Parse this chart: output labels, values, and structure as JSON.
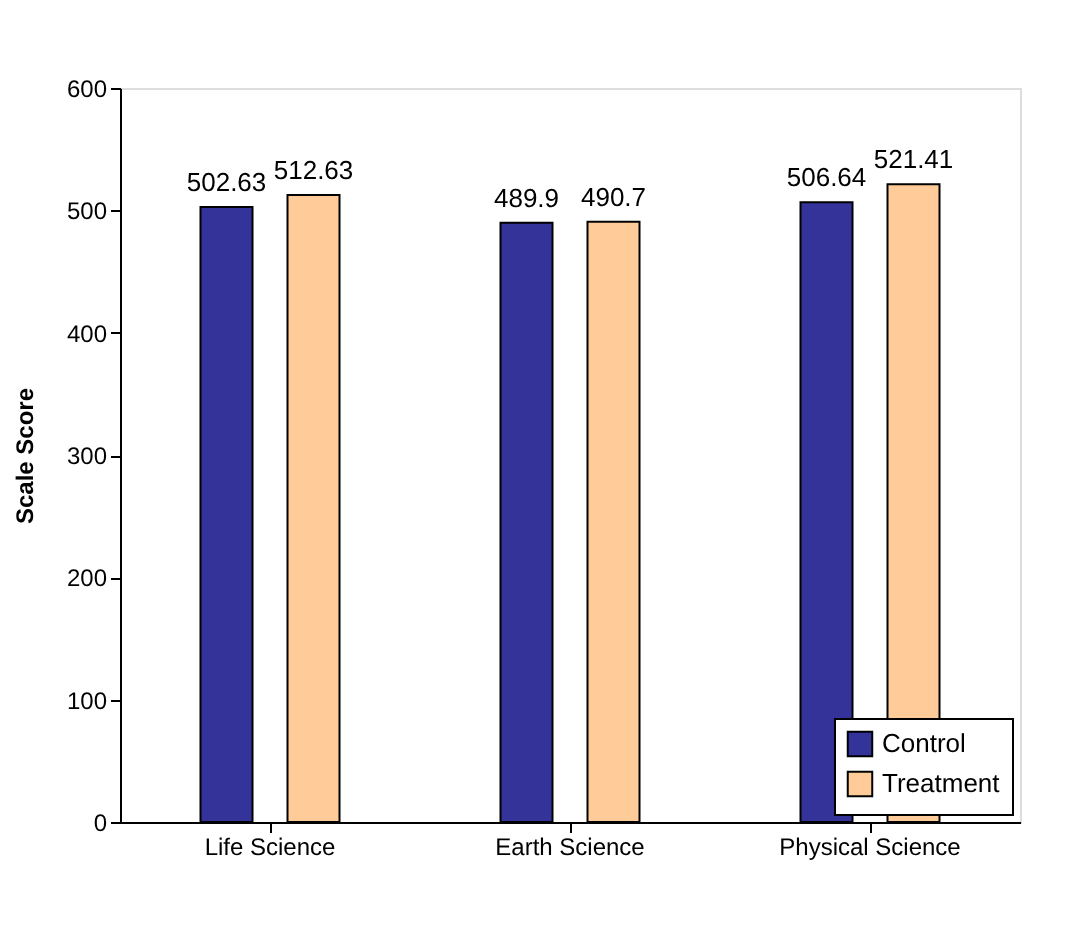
{
  "chart_data": {
    "type": "bar",
    "ylabel": "Scale Score",
    "categories": [
      "Life Science",
      "Earth Science",
      "Physical Science"
    ],
    "series": [
      {
        "name": "Control",
        "color": "#333399",
        "values": [
          502.63,
          489.9,
          506.64
        ]
      },
      {
        "name": "Treatment",
        "color": "#ffcc99",
        "values": [
          512.63,
          490.7,
          521.41
        ]
      }
    ],
    "ylim": [
      0,
      600
    ],
    "yticks": [
      0,
      100,
      200,
      300,
      400,
      500,
      600
    ],
    "grid": false,
    "legend": "bottom right",
    "data_labels": true
  }
}
